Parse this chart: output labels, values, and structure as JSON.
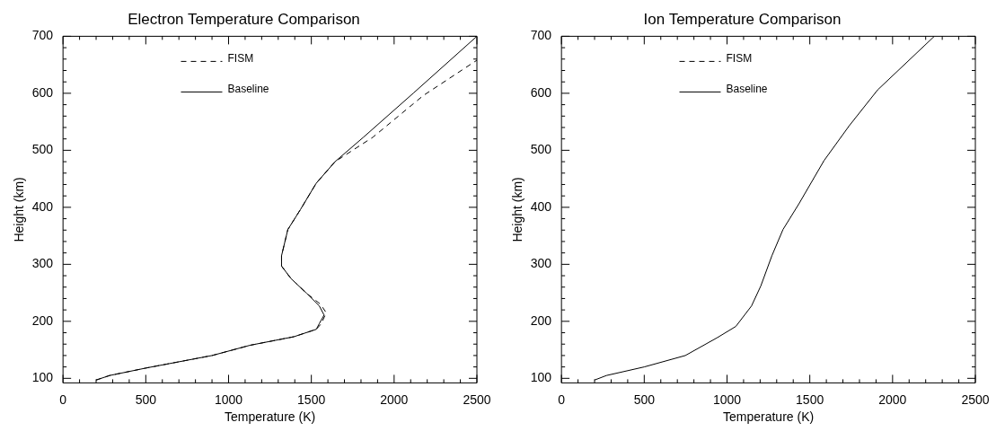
{
  "chart_data": [
    {
      "type": "line",
      "title": "Electron Temperature Comparison",
      "xlabel": "Temperature (K)",
      "ylabel": "Height (km)",
      "xlim": [
        0,
        2500
      ],
      "xticks": [
        0,
        500,
        1000,
        1500,
        2000,
        2500
      ],
      "ylim": [
        92,
        700
      ],
      "yticks": [
        100,
        200,
        300,
        400,
        500,
        600,
        700
      ],
      "legend": "top",
      "series": [
        {
          "name": "FISM",
          "color": "#000000",
          "line_style": "dashed",
          "x": [
            200,
            282,
            500,
            900,
            1130,
            1395,
            1530,
            1560,
            1590,
            1555,
            1472,
            1377,
            1320,
            1320,
            1358,
            1434,
            1529,
            1643,
            1872,
            2176,
            2500
          ],
          "values": [
            97,
            105,
            118,
            140,
            158,
            173,
            186,
            196,
            215,
            230,
            249,
            275,
            297,
            315,
            361,
            396,
            442,
            480,
            523,
            596,
            658
          ]
        },
        {
          "name": "Baseline",
          "color": "#000000",
          "line_style": "solid",
          "x": [
            200,
            282,
            500,
            900,
            1130,
            1395,
            1530,
            1548,
            1577,
            1548,
            1472,
            1377,
            1320,
            1320,
            1358,
            1434,
            1529,
            1643,
            1815,
            2119,
            2500
          ],
          "values": [
            97,
            105,
            118,
            140,
            158,
            173,
            186,
            196,
            211,
            227,
            249,
            275,
            297,
            315,
            361,
            396,
            442,
            480,
            523,
            601,
            700
          ]
        }
      ]
    },
    {
      "type": "line",
      "title": "Ion Temperature Comparison",
      "xlabel": "Temperature (K)",
      "ylabel": "Height (km)",
      "xlim": [
        0,
        2500
      ],
      "xticks": [
        0,
        500,
        1000,
        1500,
        2000,
        2500
      ],
      "ylim": [
        92,
        700
      ],
      "yticks": [
        100,
        200,
        300,
        400,
        500,
        600,
        700
      ],
      "legend": "top",
      "series": [
        {
          "name": "FISM",
          "color": "#000000",
          "line_style": "dashed",
          "values": [
            null,
            null,
            null,
            null,
            null,
            null,
            null,
            null,
            null,
            null,
            null,
            null,
            null,
            null,
            null
          ]
        },
        {
          "name": "Baseline",
          "color": "#000000",
          "line_style": "solid",
          "x": [
            200,
            272,
            500,
            748,
            939,
            1053,
            1148,
            1204,
            1271,
            1338,
            1434,
            1586,
            1738,
            1910,
            2252
          ],
          "values": [
            97,
            105,
            120,
            140,
            171,
            191,
            227,
            262,
            315,
            361,
            406,
            482,
            543,
            606,
            700
          ]
        }
      ]
    }
  ]
}
